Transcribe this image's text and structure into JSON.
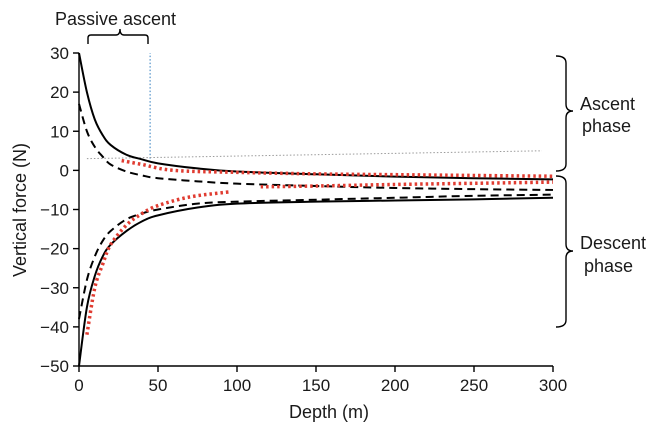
{
  "chart_data": {
    "type": "line",
    "title": "",
    "xlabel": "Depth (m)",
    "ylabel": "Vertical force (N)",
    "xlim": [
      0,
      300
    ],
    "ylim": [
      -50,
      30
    ],
    "x_ticks": [
      "0",
      "50",
      "100",
      "150",
      "200",
      "250",
      "300"
    ],
    "y_ticks": [
      "30",
      "20",
      "10",
      "0",
      "−10",
      "−20",
      "−30",
      "−40",
      "−50"
    ],
    "grid": false,
    "annotations": {
      "passive_ascent": "Passive ascent",
      "ascent_phase": [
        "Ascent",
        "phase"
      ],
      "descent_phase": [
        "Descent",
        "phase"
      ]
    },
    "series": [
      {
        "phase": "ascent",
        "style": "solid",
        "color": "#000000",
        "points": [
          [
            0,
            30
          ],
          [
            5,
            20
          ],
          [
            10,
            13
          ],
          [
            15,
            9
          ],
          [
            20,
            6.5
          ],
          [
            30,
            4
          ],
          [
            40,
            2.8
          ],
          [
            50,
            1.8
          ],
          [
            75,
            0.5
          ],
          [
            100,
            -0.3
          ],
          [
            150,
            -1
          ],
          [
            200,
            -1.6
          ],
          [
            250,
            -2
          ],
          [
            300,
            -2.3
          ]
        ]
      },
      {
        "phase": "ascent",
        "style": "dashed",
        "color": "#000000",
        "points": [
          [
            0,
            17
          ],
          [
            5,
            10
          ],
          [
            10,
            6
          ],
          [
            15,
            3.5
          ],
          [
            20,
            1.5
          ],
          [
            30,
            -0.3
          ],
          [
            40,
            -1.3
          ],
          [
            50,
            -2
          ],
          [
            75,
            -2.8
          ],
          [
            100,
            -3.4
          ],
          [
            150,
            -4
          ],
          [
            200,
            -4.5
          ],
          [
            250,
            -4.8
          ],
          [
            300,
            -5
          ]
        ]
      },
      {
        "phase": "ascent",
        "style": "dotted",
        "color": "#e03c31",
        "points": [
          [
            27,
            2.5
          ],
          [
            40,
            1.5
          ],
          [
            60,
            0
          ],
          [
            100,
            -0.5
          ],
          [
            150,
            -0.9
          ],
          [
            200,
            -1.1
          ],
          [
            250,
            -1.3
          ],
          [
            300,
            -1.5
          ]
        ]
      },
      {
        "phase": "ascent",
        "style": "dotted",
        "color": "#e03c31",
        "points": [
          [
            115,
            -4.2
          ],
          [
            150,
            -4
          ],
          [
            200,
            -3.6
          ],
          [
            250,
            -3.3
          ],
          [
            300,
            -3
          ]
        ]
      },
      {
        "phase": "descent",
        "style": "solid",
        "color": "#000000",
        "points": [
          [
            0,
            -50
          ],
          [
            5,
            -35
          ],
          [
            10,
            -27
          ],
          [
            15,
            -22
          ],
          [
            20,
            -19
          ],
          [
            30,
            -15.5
          ],
          [
            40,
            -13
          ],
          [
            50,
            -11.5
          ],
          [
            75,
            -9.5
          ],
          [
            100,
            -8.5
          ],
          [
            150,
            -8
          ],
          [
            200,
            -7.7
          ],
          [
            250,
            -7.4
          ],
          [
            300,
            -7
          ]
        ]
      },
      {
        "phase": "descent",
        "style": "dashed",
        "color": "#000000",
        "points": [
          [
            0,
            -38
          ],
          [
            5,
            -28
          ],
          [
            10,
            -22
          ],
          [
            15,
            -18
          ],
          [
            20,
            -15.5
          ],
          [
            30,
            -12.5
          ],
          [
            40,
            -11
          ],
          [
            50,
            -10
          ],
          [
            75,
            -8.5
          ],
          [
            100,
            -8
          ],
          [
            150,
            -7.5
          ],
          [
            200,
            -7
          ],
          [
            250,
            -6.5
          ],
          [
            300,
            -6.2
          ]
        ]
      },
      {
        "phase": "descent",
        "style": "dotted",
        "color": "#e03c31",
        "points": [
          [
            5,
            -42
          ],
          [
            10,
            -30
          ],
          [
            15,
            -24
          ],
          [
            20,
            -19
          ],
          [
            30,
            -14
          ],
          [
            40,
            -11
          ],
          [
            50,
            -9
          ],
          [
            70,
            -6.8
          ],
          [
            95,
            -5.5
          ]
        ]
      }
    ],
    "guide_lines": [
      {
        "style": "dotted",
        "color": "#2e7bbf",
        "points": [
          [
            45,
            3
          ],
          [
            45,
            30
          ]
        ]
      },
      {
        "style": "dotted",
        "color": "#9a9a9a",
        "points": [
          [
            5,
            3
          ],
          [
            293,
            5
          ]
        ]
      }
    ]
  }
}
